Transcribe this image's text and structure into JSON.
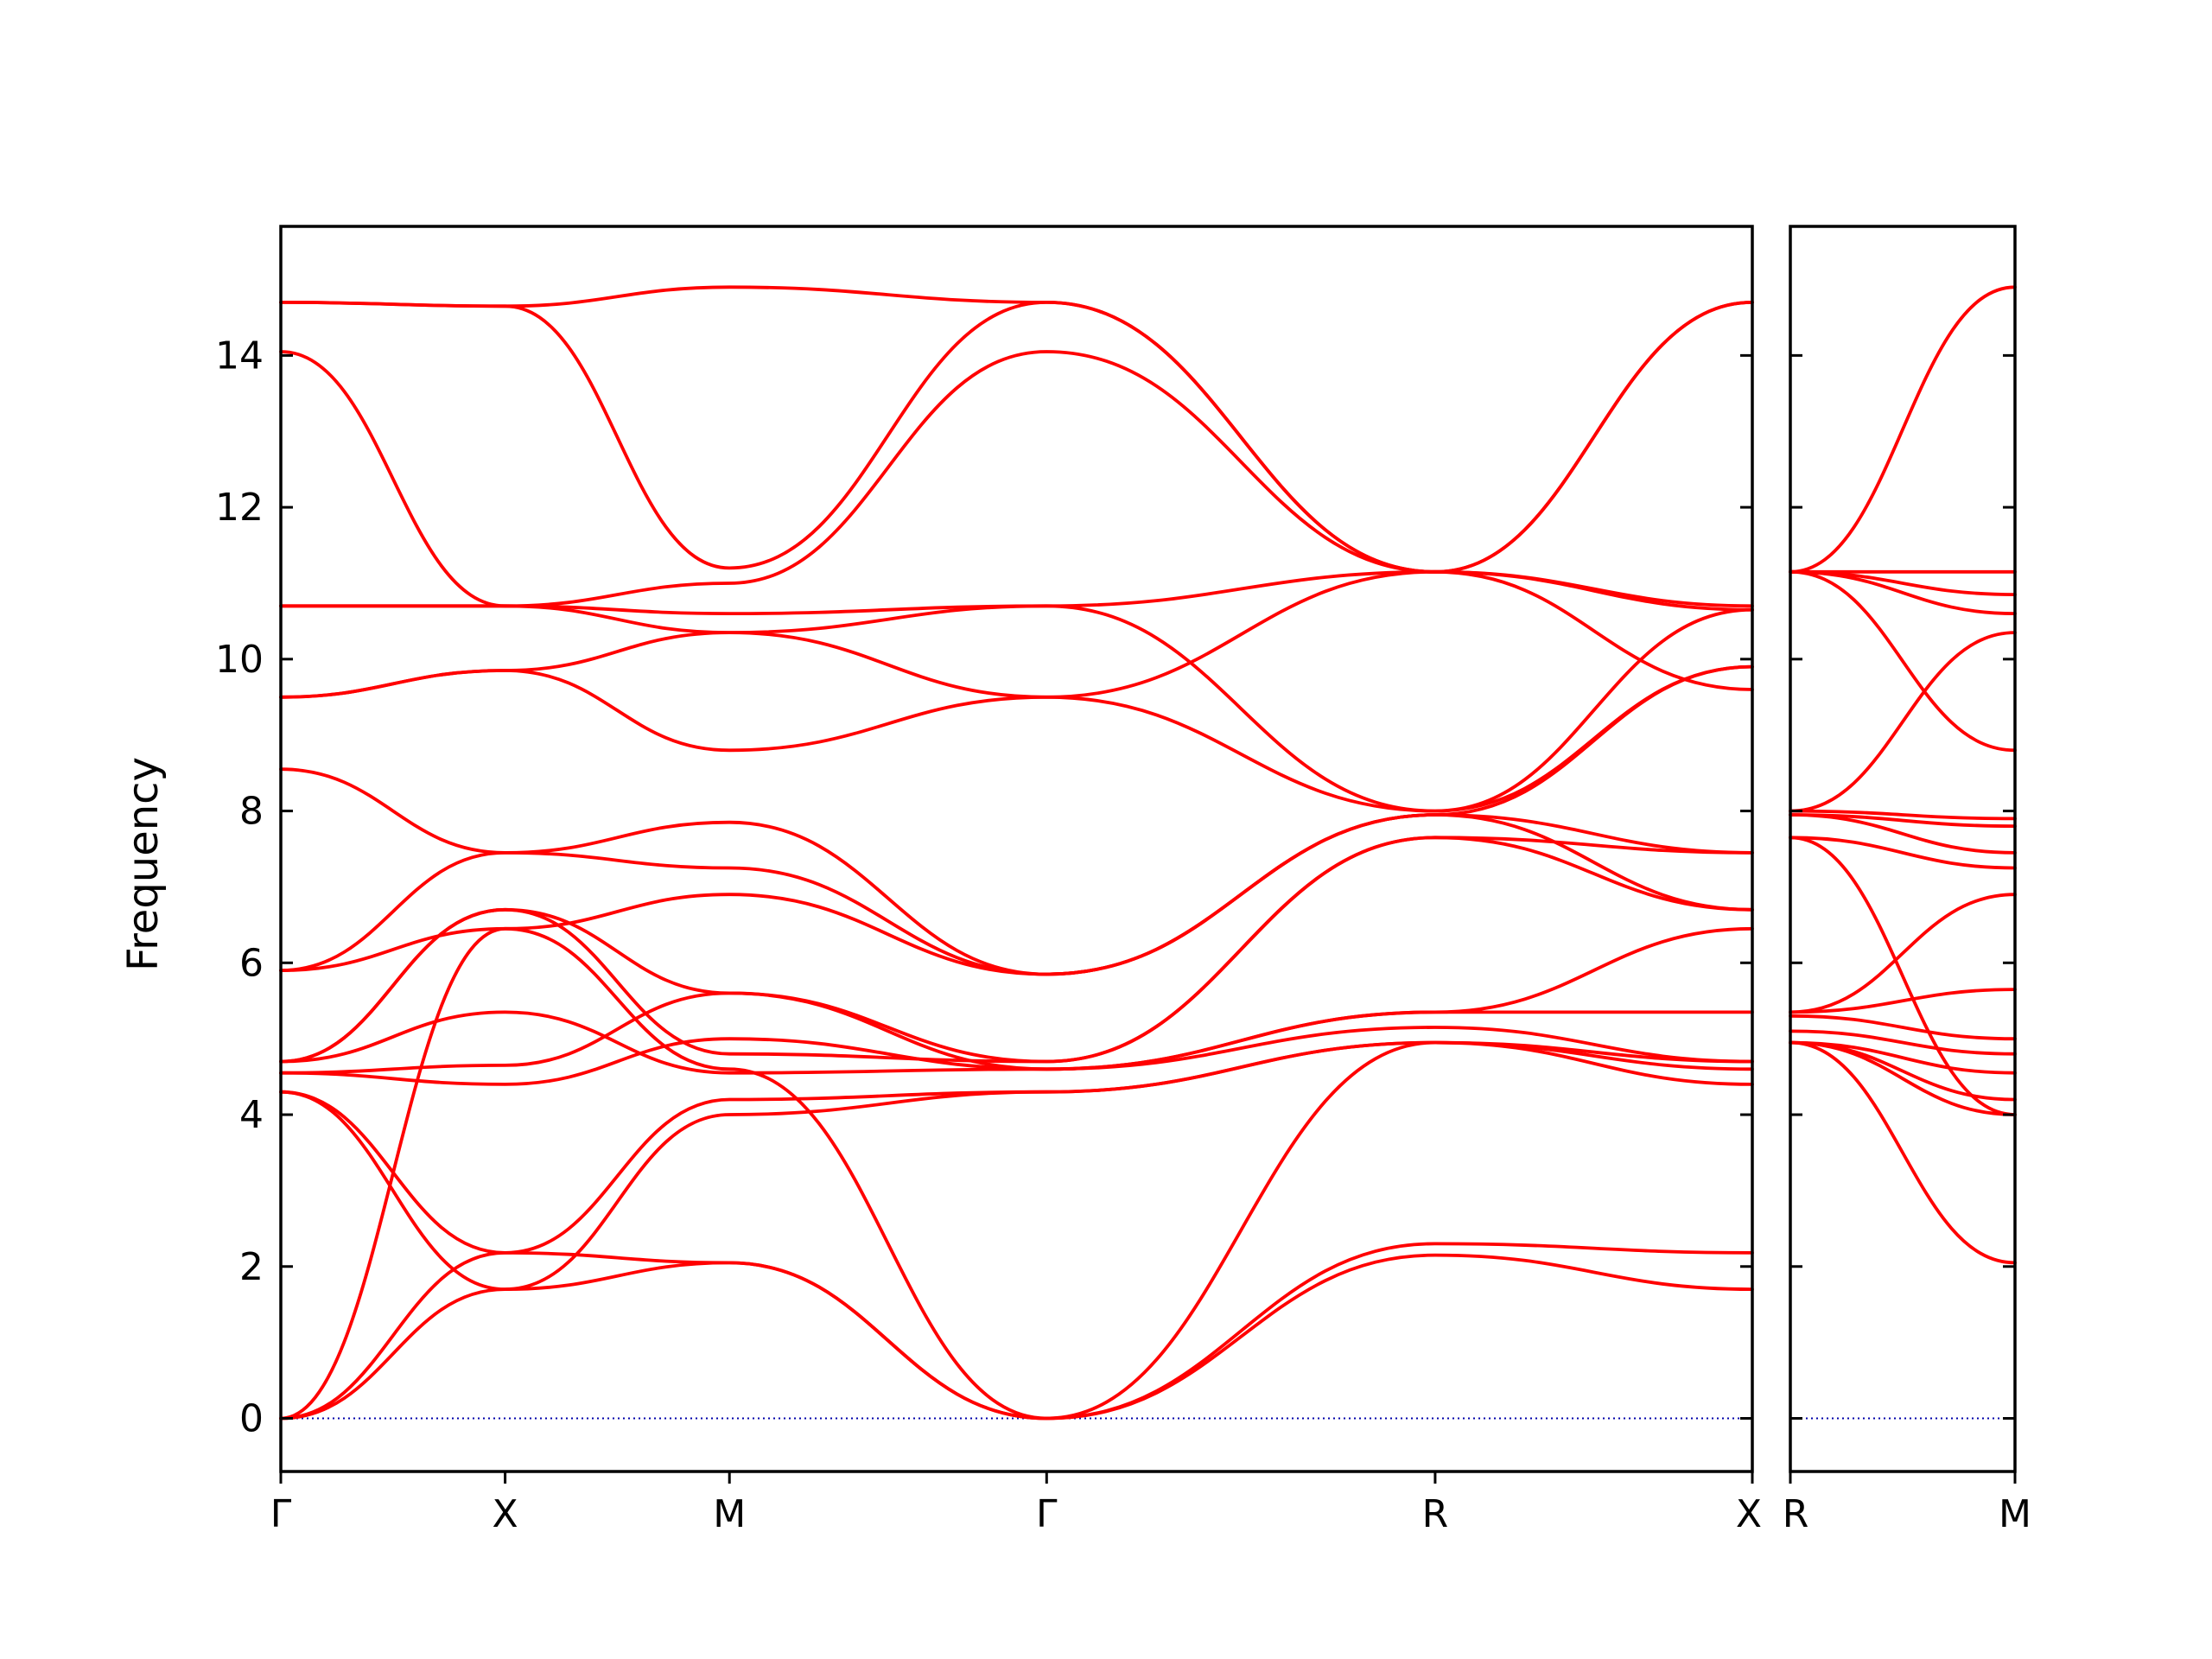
{
  "colors": {
    "band": "#ff0000",
    "zero_line": "#0000aa",
    "frame": "#000000"
  },
  "chart_data": {
    "type": "line",
    "title": "",
    "ylabel": "Frequency",
    "ylim": [
      -0.7,
      15.7
    ],
    "yticks": [
      0,
      2,
      4,
      6,
      8,
      10,
      12,
      14
    ],
    "zero_line": 0,
    "panels": [
      {
        "name": "panel-main",
        "segments": [
          {
            "from": "Γ",
            "to": "X"
          },
          {
            "from": "X",
            "to": "M"
          },
          {
            "from": "M",
            "to": "Γ"
          },
          {
            "from": "Γ",
            "to": "R"
          },
          {
            "from": "R",
            "to": "X"
          }
        ],
        "segment_lengths": [
          0.5,
          0.5,
          0.707,
          0.866,
          0.707
        ],
        "xtick_labels": [
          "Γ",
          "X",
          "M",
          "Γ",
          "R",
          "X"
        ],
        "series": [
          {
            "nodes": [
              0,
              1.7,
              2.05,
              0,
              2.15,
              1.7
            ]
          },
          {
            "nodes": [
              0,
              2.18,
              2.05,
              0,
              2.3,
              2.18
            ]
          },
          {
            "nodes": [
              0,
              6.45,
              4.6,
              0,
              4.95,
              4.4
            ]
          },
          {
            "nodes": [
              4.3,
              1.7,
              4.0,
              4.3,
              4.95,
              4.7
            ]
          },
          {
            "nodes": [
              4.3,
              2.18,
              4.2,
              4.3,
              4.95,
              4.6
            ]
          },
          {
            "nodes": [
              4.55,
              4.4,
              5.0,
              4.6,
              5.15,
              4.7
            ]
          },
          {
            "nodes": [
              4.55,
              4.65,
              5.6,
              4.6,
              5.35,
              5.35
            ]
          },
          {
            "nodes": [
              4.7,
              5.35,
              4.55,
              4.6,
              5.35,
              6.45
            ]
          },
          {
            "nodes": [
              4.7,
              6.7,
              4.8,
              4.7,
              7.65,
              6.7
            ]
          },
          {
            "nodes": [
              4.7,
              6.7,
              5.6,
              4.7,
              7.65,
              7.45
            ]
          },
          {
            "nodes": [
              5.9,
              6.45,
              6.9,
              5.85,
              7.95,
              7.45
            ]
          },
          {
            "nodes": [
              5.9,
              7.45,
              7.25,
              5.85,
              7.95,
              9.9
            ]
          },
          {
            "nodes": [
              8.55,
              7.45,
              7.85,
              5.85,
              7.95,
              6.7
            ]
          },
          {
            "nodes": [
              9.5,
              9.85,
              8.8,
              9.5,
              11.15,
              10.65
            ]
          },
          {
            "nodes": [
              9.5,
              9.85,
              10.35,
              9.5,
              8.0,
              9.9
            ]
          },
          {
            "nodes": [
              10.7,
              10.7,
              10.6,
              10.7,
              8.0,
              10.65
            ]
          },
          {
            "nodes": [
              10.7,
              10.7,
              10.35,
              10.7,
              11.15,
              10.7
            ]
          },
          {
            "nodes": [
              14.05,
              10.7,
              11.0,
              14.05,
              11.15,
              9.6
            ]
          },
          {
            "nodes": [
              14.7,
              14.65,
              11.2,
              14.7,
              11.15,
              14.7
            ]
          },
          {
            "nodes": [
              14.7,
              14.65,
              14.9,
              14.7,
              11.15,
              14.7
            ]
          }
        ]
      },
      {
        "name": "panel-rm",
        "segments": [
          {
            "from": "R",
            "to": "M"
          }
        ],
        "segment_lengths": [
          0.5
        ],
        "xtick_labels": [
          "R",
          "M"
        ],
        "series": [
          {
            "nodes": [
              4.95,
              2.05
            ]
          },
          {
            "nodes": [
              4.95,
              4.0
            ]
          },
          {
            "nodes": [
              4.95,
              4.2
            ]
          },
          {
            "nodes": [
              4.95,
              4.55
            ]
          },
          {
            "nodes": [
              5.1,
              4.8
            ]
          },
          {
            "nodes": [
              5.3,
              5.0
            ]
          },
          {
            "nodes": [
              5.35,
              5.65
            ]
          },
          {
            "nodes": [
              5.35,
              6.9
            ]
          },
          {
            "nodes": [
              7.65,
              4.0
            ]
          },
          {
            "nodes": [
              7.65,
              7.25
            ]
          },
          {
            "nodes": [
              7.95,
              7.45
            ]
          },
          {
            "nodes": [
              7.95,
              7.8
            ]
          },
          {
            "nodes": [
              8.0,
              7.9
            ]
          },
          {
            "nodes": [
              8.0,
              10.35
            ]
          },
          {
            "nodes": [
              11.15,
              8.8
            ]
          },
          {
            "nodes": [
              11.15,
              10.6
            ]
          },
          {
            "nodes": [
              11.15,
              10.85
            ]
          },
          {
            "nodes": [
              11.15,
              11.15
            ]
          },
          {
            "nodes": [
              11.15,
              14.9
            ]
          }
        ]
      }
    ]
  }
}
